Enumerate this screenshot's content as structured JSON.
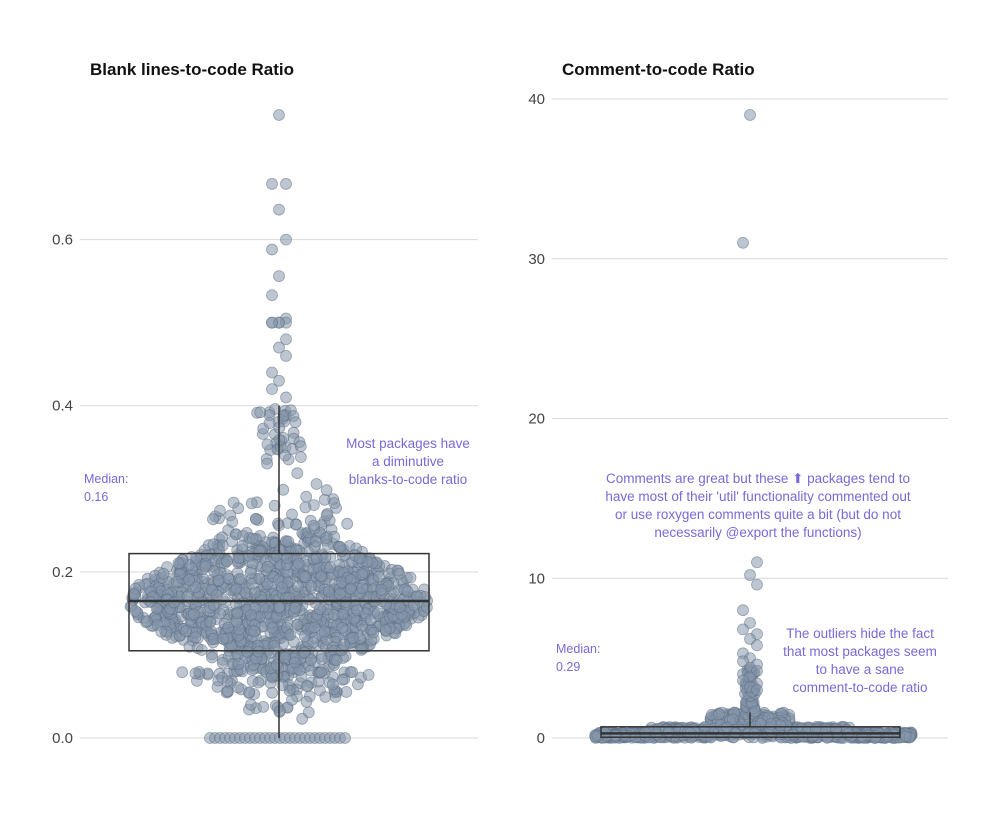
{
  "chart_data": [
    {
      "type": "beeswarm_boxplot",
      "title": "Blank lines-to-code Ratio",
      "ylim": [
        0,
        0.75
      ],
      "yticks": [
        0.0,
        0.2,
        0.4,
        0.6
      ],
      "ytick_labels": [
        "0.0",
        "0.2",
        "0.4",
        "0.6"
      ],
      "grid": true,
      "box": {
        "q1": 0.105,
        "median": 0.165,
        "q3": 0.222,
        "whisker_low": 0.0,
        "whisker_high": 0.4
      },
      "median_label": "Median:",
      "median_value": "0.16",
      "annotation": [
        "Most packages have",
        "a diminutive",
        "blanks-to-code ratio"
      ],
      "outliers": [
        0.75,
        0.667,
        0.667,
        0.636,
        0.6,
        0.588,
        0.556,
        0.533,
        0.505,
        0.5,
        0.5,
        0.5,
        0.5,
        0.5,
        0.48,
        0.47,
        0.46,
        0.44,
        0.43,
        0.42,
        0.41
      ]
    },
    {
      "type": "beeswarm_boxplot",
      "title": "Comment-to-code Ratio",
      "ylim": [
        0,
        40
      ],
      "yticks": [
        0,
        10,
        20,
        30,
        40
      ],
      "ytick_labels": [
        "0",
        "10",
        "20",
        "30",
        "40"
      ],
      "grid": true,
      "box": {
        "q1": 0.05,
        "median": 0.29,
        "q3": 0.7,
        "whisker_low": 0.0,
        "whisker_high": 1.6
      },
      "median_label": "Median:",
      "median_value": "0.29",
      "annotation_top": [
        "Comments are great but these ⬆ packages tend to",
        "have most of their 'util' functionality commented out",
        "or use roxygen comments quite a bit (but do not",
        "necessarily @export the functions)"
      ],
      "annotation_bottom": [
        "The outliers hide the fact",
        "that most packages seem",
        "to have a sane",
        "comment-to-code ratio"
      ],
      "outliers": [
        39,
        31,
        11,
        10.2,
        9.6,
        8,
        7.2,
        6.8,
        6.5,
        6.2,
        5.8,
        5.3,
        5.0,
        4.8,
        4.6,
        4.4,
        4.2,
        4.0,
        3.8,
        3.6,
        3.4,
        3.2,
        3.0
      ]
    }
  ],
  "colors": {
    "point_fill": "#8797ab",
    "point_stroke": "#5d6d82",
    "annotation": "#7b68d8",
    "grid": "#d9d9d9",
    "box": "#333333"
  }
}
